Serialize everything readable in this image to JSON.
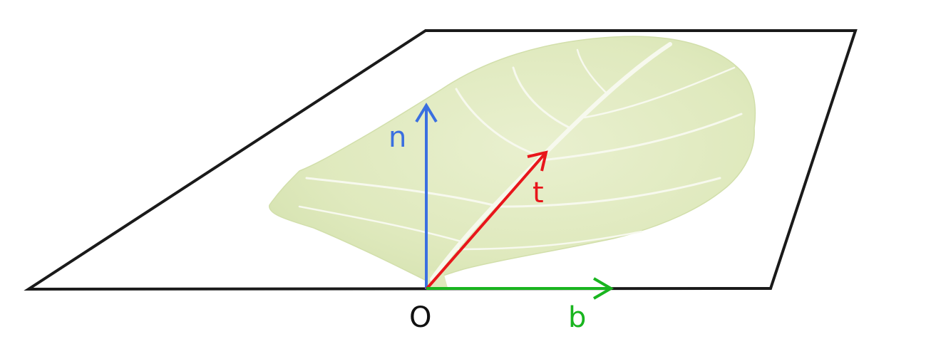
{
  "labels": {
    "origin": "O",
    "normal": "n",
    "tangent": "t",
    "binormal": "b"
  },
  "colors": {
    "plane_outline": "#1a1a1a",
    "normal": "#3a6fe0",
    "tangent": "#e8161b",
    "binormal": "#19b51f",
    "leaf_fill": "#e3ecc4",
    "leaf_vein": "#f5f8ea",
    "origin_label": "#111111"
  }
}
